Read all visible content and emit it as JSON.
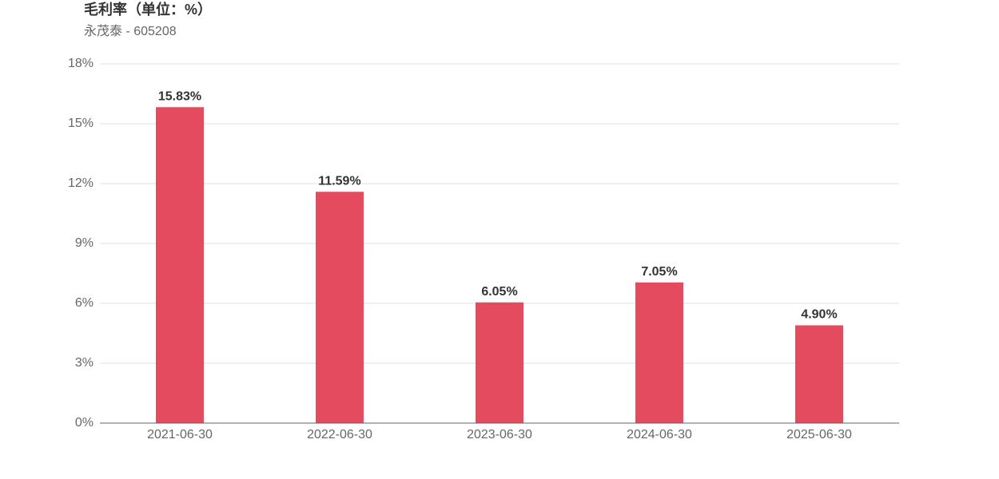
{
  "chart_data": {
    "type": "bar",
    "title": "毛利率（单位：%）",
    "subtitle": "永茂泰 - 605208",
    "categories": [
      "2021-06-30",
      "2022-06-30",
      "2023-06-30",
      "2024-06-30",
      "2025-06-30"
    ],
    "values": [
      15.83,
      11.59,
      6.05,
      7.05,
      4.9
    ],
    "value_labels": [
      "15.83%",
      "11.59%",
      "6.05%",
      "7.05%",
      "4.90%"
    ],
    "color": "#e54b5e",
    "ylim": [
      0,
      18
    ],
    "yticks": [
      {
        "value": 0,
        "label": "0%"
      },
      {
        "value": 3,
        "label": "3%"
      },
      {
        "value": 6,
        "label": "6%"
      },
      {
        "value": 9,
        "label": "9%"
      },
      {
        "value": 12,
        "label": "12%"
      },
      {
        "value": 15,
        "label": "15%"
      },
      {
        "value": 18,
        "label": "18%"
      }
    ],
    "grid": true
  }
}
